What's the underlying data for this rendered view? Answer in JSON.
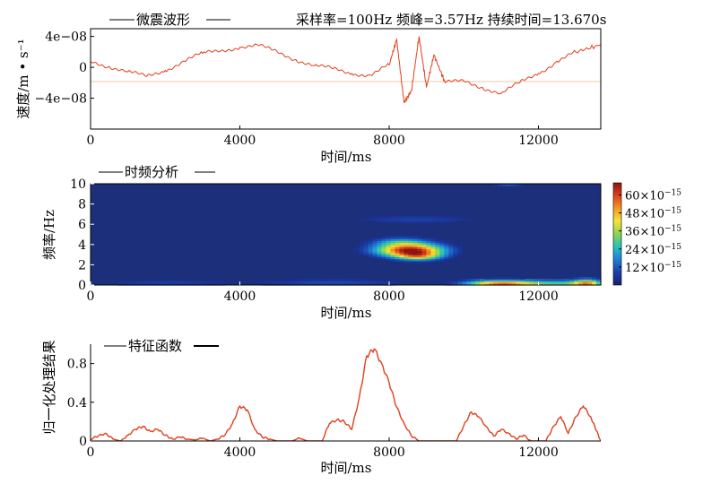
{
  "chart_data": [
    {
      "type": "line",
      "title": "微震波形",
      "info": "采样率=100Hz 频峰=3.57Hz 持续时间=13.670s",
      "xlabel": "时间/ms",
      "ylabel": "速度/m • s⁻¹",
      "xlim": [
        0,
        13670
      ],
      "ylim": [
        -8e-08,
        5e-08
      ],
      "xticks": [
        0,
        4000,
        8000,
        12000
      ],
      "yticks": [
        4e-08,
        0,
        -4e-08
      ],
      "yticklabels": [
        "4e−08",
        "0",
        "−4e−08"
      ],
      "line_color": "#e0401c",
      "zero_line_color": "#f0c9a8",
      "series": [
        {
          "x": [
            0,
            500,
            1000,
            1500,
            2000,
            2500,
            3000,
            3500,
            4000,
            4500,
            5000,
            5500,
            6000,
            6500,
            7000,
            7500,
            8000,
            8200,
            8400,
            8600,
            8800,
            9000,
            9200,
            9500,
            10000,
            10500,
            11000,
            11500,
            12000,
            12500,
            13000,
            13670
          ],
          "y": [
            8e-09,
            1e-09,
            -6e-09,
            -1.2e-08,
            -4e-09,
            8e-09,
            1.8e-08,
            2.2e-08,
            2.6e-08,
            2.8e-08,
            2e-08,
            1e-08,
            2e-09,
            -2e-09,
            -8e-09,
            -1e-08,
            3e-09,
            3.6e-08,
            -4.6e-08,
            -3e-08,
            4e-08,
            -2.6e-08,
            1.6e-08,
            -2e-08,
            -1.8e-08,
            -2.6e-08,
            -3.4e-08,
            -2e-08,
            -8e-09,
            8e-09,
            2e-08,
            2.9e-08
          ]
        }
      ]
    },
    {
      "type": "heatmap",
      "title": "时频分析",
      "xlabel": "时间/ms",
      "ylabel": "频率/Hz",
      "xlim": [
        0,
        13670
      ],
      "ylim": [
        0,
        10
      ],
      "xticks": [
        0,
        4000,
        8000,
        12000
      ],
      "yticks": [
        0,
        2,
        4,
        6,
        8,
        10
      ],
      "colorbar": {
        "label_prefix": "×10",
        "exponent": "−15",
        "ticks": [
          12,
          24,
          36,
          48,
          60
        ],
        "range": [
          0,
          68
        ],
        "colors": [
          "#1a1f6e",
          "#1b3fa8",
          "#1f7fd8",
          "#22c4c0",
          "#8fd44a",
          "#f5e33a",
          "#f39a25",
          "#e0401c",
          "#8c1414"
        ]
      },
      "background_color": "#1c2f7a",
      "hotspots": [
        {
          "t": 8550,
          "f": 3.5,
          "st": 620,
          "sf": 0.45,
          "a": 66
        },
        {
          "t": 8800,
          "f": 2.9,
          "st": 420,
          "sf": 0.3,
          "a": 32
        },
        {
          "t": 8300,
          "f": 4.3,
          "st": 500,
          "sf": 0.3,
          "a": 18
        },
        {
          "t": 11000,
          "f": 0.15,
          "st": 650,
          "sf": 0.25,
          "a": 58
        },
        {
          "t": 12700,
          "f": 0.15,
          "st": 750,
          "sf": 0.25,
          "a": 28
        },
        {
          "t": 13300,
          "f": 0.2,
          "st": 250,
          "sf": 0.3,
          "a": 38
        },
        {
          "t": 8700,
          "f": 6.5,
          "st": 1200,
          "sf": 0.25,
          "a": 9
        },
        {
          "t": 11200,
          "f": 10.0,
          "st": 300,
          "sf": 0.2,
          "a": 12
        },
        {
          "t": 2000,
          "f": 0.2,
          "st": 1200,
          "sf": 0.25,
          "a": 8
        },
        {
          "t": 6500,
          "f": 0.25,
          "st": 1400,
          "sf": 0.25,
          "a": 10
        }
      ]
    },
    {
      "type": "line",
      "title": "特征函数",
      "xlabel": "时间/ms",
      "ylabel": "归一化处理结果",
      "xlim": [
        0,
        13670
      ],
      "ylim": [
        0,
        1.0
      ],
      "xticks": [
        0,
        4000,
        8000,
        12000
      ],
      "yticks": [
        0,
        0.4,
        0.8
      ],
      "line_color": "#e0401c",
      "series": [
        {
          "x": [
            0,
            200,
            400,
            600,
            800,
            1000,
            1200,
            1400,
            1600,
            1800,
            2000,
            2200,
            2400,
            2600,
            2800,
            3000,
            3200,
            3400,
            3600,
            3800,
            4000,
            4200,
            4400,
            4600,
            4800,
            5000,
            5200,
            5400,
            5600,
            5800,
            6000,
            6200,
            6400,
            6600,
            6800,
            7000,
            7200,
            7400,
            7600,
            7800,
            8000,
            8200,
            8400,
            8600,
            8800,
            9000,
            9200,
            9400,
            9600,
            9800,
            10000,
            10200,
            10400,
            10600,
            10800,
            11000,
            11200,
            11400,
            11600,
            11800,
            12000,
            12200,
            12400,
            12600,
            12800,
            13000,
            13200,
            13400,
            13670
          ],
          "y": [
            0.02,
            0.05,
            0.08,
            0.02,
            0.0,
            0.06,
            0.12,
            0.15,
            0.1,
            0.12,
            0.06,
            0.02,
            0.04,
            0.02,
            0.01,
            0.03,
            0.0,
            0.02,
            0.06,
            0.18,
            0.36,
            0.32,
            0.12,
            0.04,
            0.02,
            0.0,
            0.0,
            0.0,
            0.03,
            0.0,
            0.0,
            0.0,
            0.18,
            0.22,
            0.2,
            0.12,
            0.45,
            0.88,
            0.95,
            0.8,
            0.6,
            0.35,
            0.18,
            0.05,
            0.0,
            0.0,
            0.0,
            0.0,
            0.0,
            0.0,
            0.16,
            0.3,
            0.25,
            0.15,
            0.05,
            0.12,
            0.08,
            0.02,
            0.06,
            0.0,
            0.0,
            0.0,
            0.15,
            0.25,
            0.08,
            0.25,
            0.36,
            0.25,
            0.0
          ]
        }
      ]
    }
  ]
}
